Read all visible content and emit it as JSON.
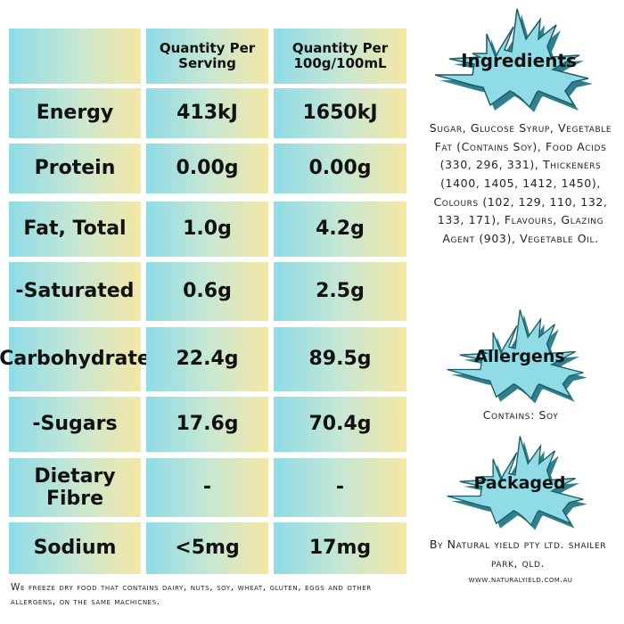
{
  "table": {
    "headers": [
      "",
      "Quantity Per Serving",
      "Quantity Per 100g/100mL"
    ],
    "rows": [
      {
        "name": "Energy",
        "serving": "413kJ",
        "per100": "1650kJ"
      },
      {
        "name": "Protein",
        "serving": "0.00g",
        "per100": "0.00g"
      },
      {
        "name": "Fat, Total",
        "serving": "1.0g",
        "per100": "4.2g"
      },
      {
        "name": "-Saturated",
        "serving": "0.6g",
        "per100": "2.5g"
      },
      {
        "name": "Carbohydrate",
        "serving": "22.4g",
        "per100": "89.5g"
      },
      {
        "name": "-Sugars",
        "serving": "17.6g",
        "per100": "70.4g"
      },
      {
        "name": "Dietary Fibre",
        "serving": "-",
        "per100": "-"
      },
      {
        "name": "Sodium",
        "serving": "<5mg",
        "per100": "17mg"
      }
    ]
  },
  "ingredients": {
    "title": "Ingredients",
    "text": "Sugar, Glucose Syrup, Vegetable Fat (Contains Soy), Food Acids (330, 296, 331), Thickeners (1400, 1405, 1412, 1450), Colours (102, 129, 110, 132, 133, 171), Flavours, Glazing Agent (903), Vegetable Oil."
  },
  "allergens": {
    "title": "Allergens",
    "text": "Contains: Soy"
  },
  "packaged": {
    "title": "Packaged",
    "text": "By Natural yield pty ltd.  shailer park, qld.",
    "website": "www.naturalyield.com.au"
  },
  "footer": {
    "note": "We freeze dry food that contains dairy, nuts, soy, wheat, gluten, eggs and other allergens, on the same machicnes."
  },
  "colors": {
    "burst_fill": "#8fdbe6",
    "burst_shadow": "#2f7f8c",
    "cell_left": "#8fdbe6",
    "cell_right": "#f5e7a4"
  }
}
